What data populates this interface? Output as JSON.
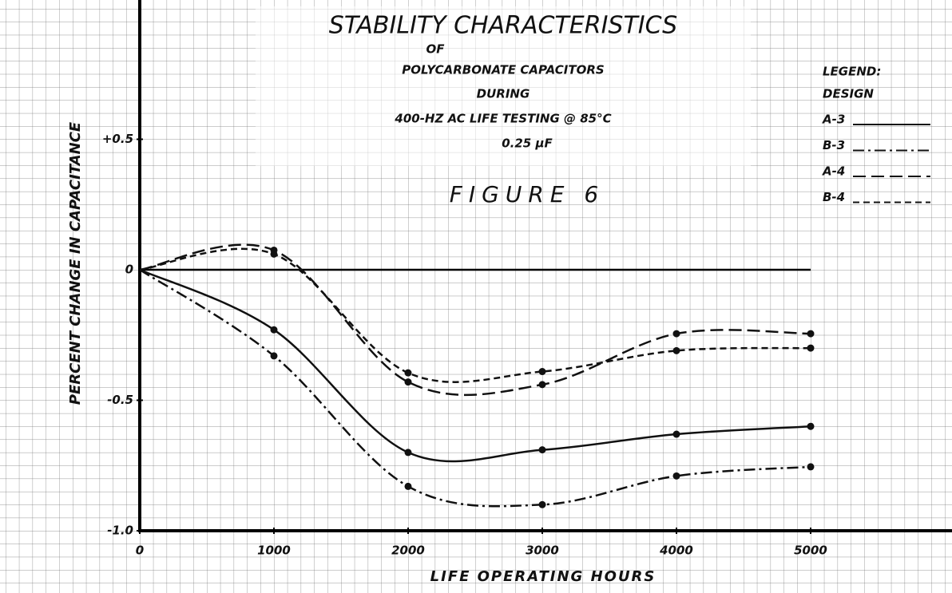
{
  "chart_data": {
    "type": "line",
    "title": "STABILITY CHARACTERISTICS",
    "subtitle_lines": [
      "OF",
      "POLYCARBONATE CAPACITORS",
      "DURING",
      "400-HZ AC LIFE TESTING @ 85°C",
      "0.25 µF"
    ],
    "figure_label": "FIGURE 6",
    "legend_title": [
      "LEGEND:",
      "DESIGN"
    ],
    "x_label": "LIFE OPERATING HOURS",
    "y_label": "PERCENT CHANGE IN CAPACITANCE",
    "x": [
      0,
      1000,
      2000,
      3000,
      4000,
      5000
    ],
    "series": [
      {
        "name": "A-3",
        "color": "#111111",
        "style": "solid",
        "values": [
          0,
          -0.23,
          -0.7,
          -0.69,
          -0.63,
          -0.6
        ]
      },
      {
        "name": "B-3",
        "color": "#111111",
        "style": "dashdot",
        "values": [
          0,
          -0.33,
          -0.83,
          -0.9,
          -0.79,
          -0.755
        ]
      },
      {
        "name": "A-4",
        "color": "#111111",
        "style": "longdash",
        "values": [
          0,
          0.075,
          -0.43,
          -0.44,
          -0.245,
          -0.245
        ]
      },
      {
        "name": "B-4",
        "color": "#111111",
        "style": "dash",
        "values": [
          0,
          0.06,
          -0.395,
          -0.39,
          -0.31,
          -0.3
        ]
      }
    ],
    "xlim": [
      0,
      6000
    ],
    "xticks": [
      0,
      1000,
      2000,
      3000,
      4000,
      5000
    ],
    "ylim": [
      -1.0,
      1.0
    ],
    "yticks": [
      {
        "value": -1.0,
        "label": "-1.0"
      },
      -0.5,
      0,
      {
        "value": 0.5,
        "label": "+0.5"
      }
    ],
    "markers": true,
    "legend": "upper right"
  }
}
